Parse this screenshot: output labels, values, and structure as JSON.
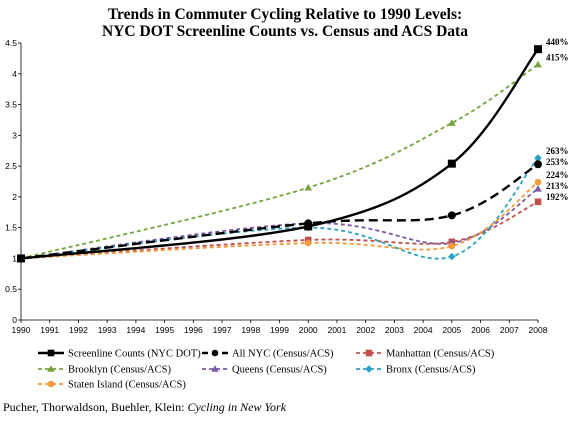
{
  "chart_data": {
    "type": "line",
    "title_line1": "Trends in Commuter Cycling Relative to 1990 Levels:",
    "title_line2": "NYC DOT Screenline Counts vs. Census and ACS Data",
    "x_ticks": [
      "1990",
      "1991",
      "1992",
      "1993",
      "1994",
      "1995",
      "1996",
      "1997",
      "1998",
      "1999",
      "2000",
      "2001",
      "2002",
      "2003",
      "2004",
      "2005",
      "2006",
      "2007",
      "2008"
    ],
    "y_ticks": [
      "0",
      "0.5",
      "1",
      "1.5",
      "2",
      "2.5",
      "3",
      "3.5",
      "4",
      "4.5"
    ],
    "xlim": [
      1990,
      2008
    ],
    "ylim": [
      0,
      4.5
    ],
    "grid": false,
    "legend_position": "bottom",
    "series": [
      {
        "name": "Screenline Counts (NYC DOT)",
        "color": "#000000",
        "dash": "solid",
        "marker": "square",
        "x": [
          1990,
          2000,
          2005,
          2008
        ],
        "y": [
          1.0,
          1.52,
          2.54,
          4.4
        ],
        "end_label": "440%"
      },
      {
        "name": "All NYC (Census/ACS)",
        "color": "#000000",
        "dash": "dashed",
        "marker": "circle",
        "x": [
          1990,
          2000,
          2005,
          2008
        ],
        "y": [
          1.0,
          1.57,
          1.7,
          2.53
        ],
        "end_label": "253%"
      },
      {
        "name": "Manhattan (Census/ACS)",
        "color": "#c0504d",
        "dash": "dashed",
        "marker": "square",
        "x": [
          1990,
          2000,
          2005,
          2008
        ],
        "y": [
          1.0,
          1.3,
          1.27,
          1.92
        ],
        "end_label": "192%"
      },
      {
        "name": "Brooklyn (Census/ACS)",
        "color": "#77a23c",
        "dash": "dashed",
        "marker": "triangle",
        "x": [
          1990,
          2000,
          2005,
          2008
        ],
        "y": [
          1.0,
          2.15,
          3.2,
          4.15
        ],
        "end_label": "415%"
      },
      {
        "name": "Queens (Census/ACS)",
        "color": "#7a5aa6",
        "dash": "dashed",
        "marker": "triangle",
        "x": [
          1990,
          2000,
          2005,
          2008
        ],
        "y": [
          1.0,
          1.57,
          1.25,
          2.13
        ],
        "end_label": "213%"
      },
      {
        "name": "Bronx (Census/ACS)",
        "color": "#2da2c0",
        "dash": "dashed",
        "marker": "diamond",
        "x": [
          1990,
          2000,
          2005,
          2008
        ],
        "y": [
          1.0,
          1.5,
          1.03,
          2.63
        ],
        "end_label": "263%"
      },
      {
        "name": "Staten Island (Census/ACS)",
        "color": "#f39a3b",
        "dash": "dashed",
        "marker": "circle",
        "x": [
          1990,
          2000,
          2005,
          2008
        ],
        "y": [
          1.0,
          1.25,
          1.2,
          2.24
        ],
        "end_label": "224%"
      }
    ]
  },
  "source": {
    "authors": "Pucher, Thorwaldson, Buehler, Klein: ",
    "work": "Cycling in New York"
  }
}
